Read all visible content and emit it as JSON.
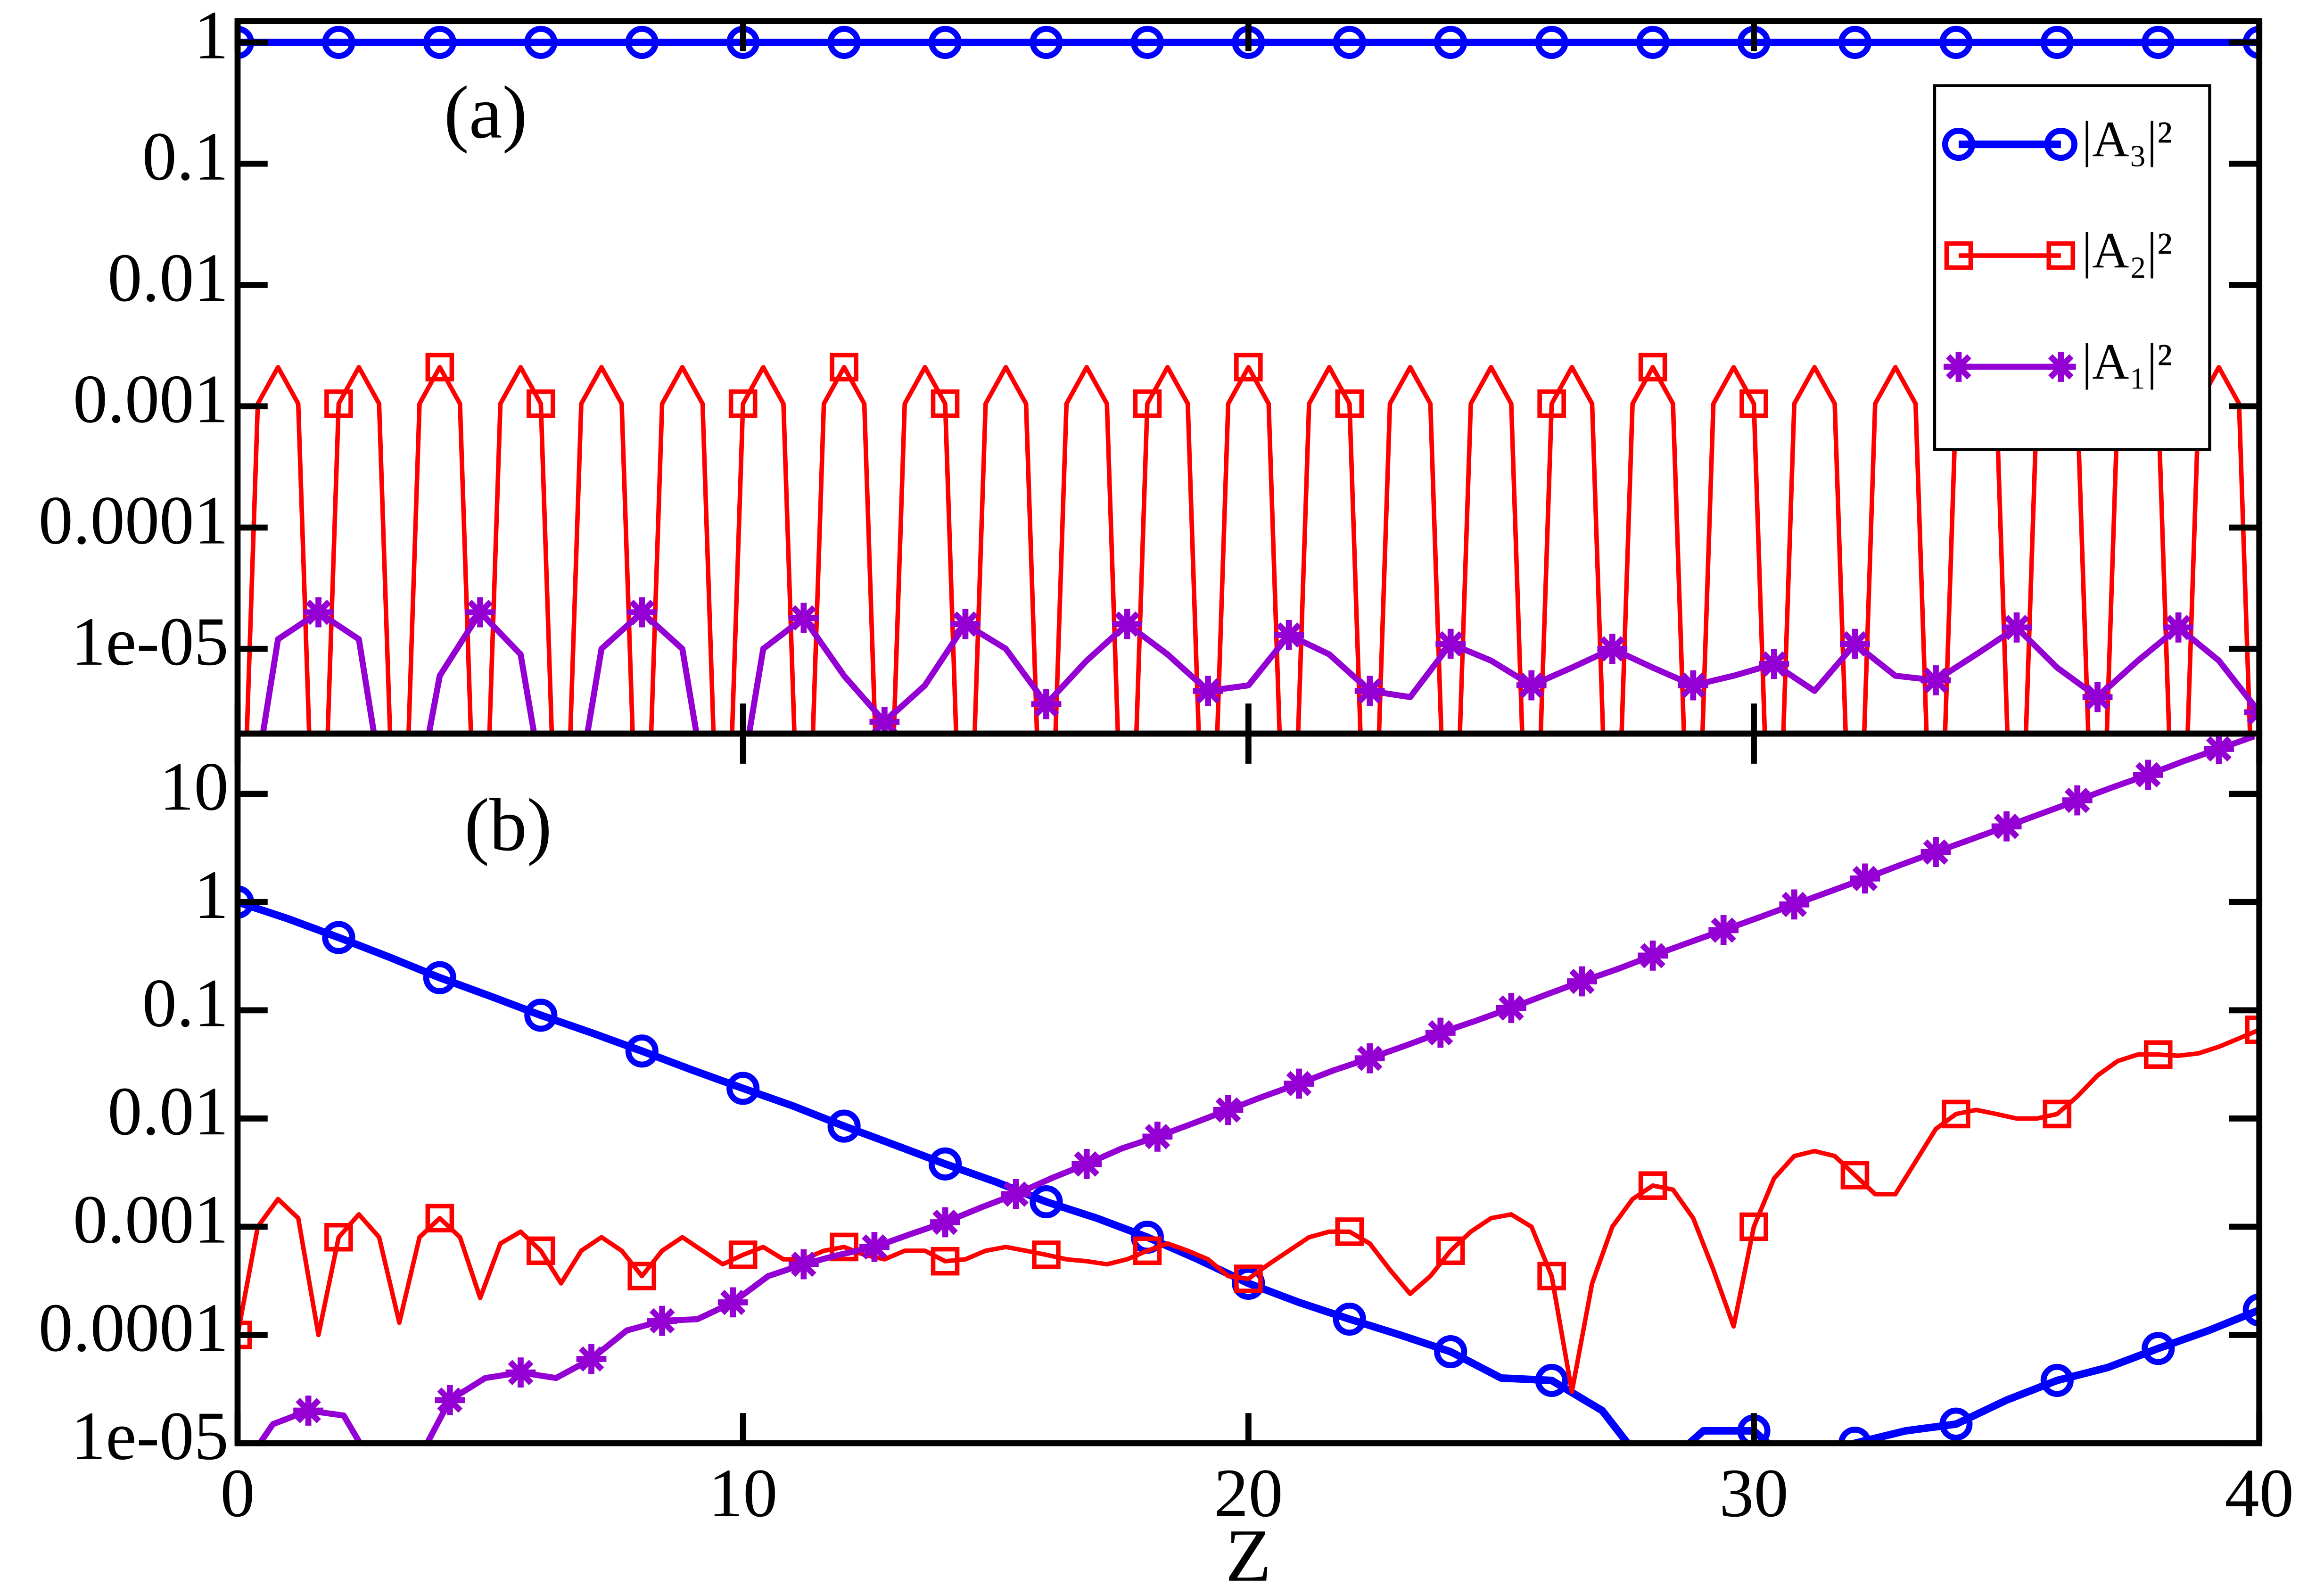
{
  "chart_data": [
    {
      "type": "line",
      "annotation": "(a)",
      "log_y": true,
      "legend": "upper right",
      "xlim": [
        0,
        40
      ],
      "xticks": [
        0,
        10,
        20,
        30,
        40
      ],
      "ylim": [
        2e-06,
        1.5
      ],
      "yticks": [
        {
          "value": 1e-05,
          "label": "1e-05"
        },
        0.0001,
        0.001,
        0.01,
        0.1,
        1
      ],
      "x": [
        0,
        0.4,
        0.8,
        1.2,
        1.6,
        2,
        2.4,
        2.8,
        3.2,
        3.6,
        4,
        4.4,
        4.8,
        5.2,
        5.6,
        6,
        6.4,
        6.8,
        7.2,
        7.6,
        8,
        8.4,
        8.8,
        9.2,
        9.6,
        10,
        10.4,
        10.8,
        11.2,
        11.6,
        12,
        12.4,
        12.8,
        13.2,
        13.6,
        14,
        14.4,
        14.8,
        15.2,
        15.6,
        16,
        16.4,
        16.8,
        17.2,
        17.6,
        18,
        18.4,
        18.8,
        19.2,
        19.6,
        20,
        20.4,
        20.8,
        21.2,
        21.6,
        22,
        22.4,
        22.8,
        23.2,
        23.6,
        24,
        24.4,
        24.8,
        25.2,
        25.6,
        26,
        26.4,
        26.8,
        27.2,
        27.6,
        28,
        28.4,
        28.8,
        29.2,
        29.6,
        30,
        30.4,
        30.8,
        31.2,
        31.6,
        32,
        32.4,
        32.8,
        33.2,
        33.6,
        34,
        34.4,
        34.8,
        35.2,
        35.6,
        36,
        36.4,
        36.8,
        37.2,
        37.6,
        38,
        38.4,
        38.8,
        39.2,
        39.6,
        40
      ],
      "series": [
        {
          "name": "|A₃|²",
          "color": "#0000ff",
          "marker": "circle",
          "x": [
            0,
            2,
            4,
            6,
            8,
            10,
            12,
            14,
            16,
            18,
            20,
            22,
            24,
            26,
            28,
            30,
            32,
            34,
            36,
            38,
            40
          ],
          "values": [
            1,
            1,
            1,
            1,
            1,
            1,
            1,
            1,
            1,
            1,
            1,
            1,
            1,
            1,
            1,
            1,
            1,
            1,
            1,
            1,
            1
          ]
        },
        {
          "name": "|A₂|²",
          "color": "#ff0000",
          "marker": "square",
          "values": [
            1e-08,
            0.00105,
            0.0021,
            0.00105,
            1e-08,
            0.00105,
            0.0021,
            0.00105,
            1e-08,
            0.00105,
            0.0021,
            0.00105,
            1e-08,
            0.00105,
            0.0021,
            0.00105,
            1e-08,
            0.00105,
            0.0021,
            0.00105,
            1e-08,
            0.00105,
            0.0021,
            0.00105,
            1e-08,
            0.00105,
            0.0021,
            0.00105,
            1e-08,
            0.00105,
            0.0021,
            0.00105,
            1e-08,
            0.00105,
            0.0021,
            0.00105,
            1e-08,
            0.00105,
            0.0021,
            0.00105,
            1e-08,
            0.00105,
            0.0021,
            0.00105,
            1e-08,
            0.00105,
            0.0021,
            0.00105,
            1e-08,
            0.00105,
            0.0021,
            0.00105,
            1e-08,
            0.00105,
            0.0021,
            0.00105,
            1e-08,
            0.00105,
            0.0021,
            0.00105,
            1e-08,
            0.00105,
            0.0021,
            0.00105,
            1e-08,
            0.00105,
            0.0021,
            0.00105,
            1e-08,
            0.00105,
            0.0021,
            0.00105,
            1e-08,
            0.00105,
            0.0021,
            0.00105,
            1e-08,
            0.00105,
            0.0021,
            0.00105,
            1e-08,
            0.00105,
            0.0021,
            0.00105,
            1e-08,
            0.00105,
            0.0021,
            0.00105,
            1e-08,
            0.00105,
            0.0021,
            0.00105,
            1e-08,
            0.00105,
            0.0021,
            0.00105,
            1e-08,
            0.00105,
            0.0021,
            0.00105,
            1e-08
          ]
        },
        {
          "name": "|A₁|²",
          "color": "#9400d3",
          "marker": "star",
          "x": [
            0,
            0.8,
            1.6,
            2.4,
            3.2,
            4,
            4.8,
            5.6,
            6.4,
            7.2,
            8,
            8.8,
            9.6,
            10.4,
            11.2,
            12,
            12.8,
            13.6,
            14.4,
            15.2,
            16,
            16.8,
            17.6,
            18.4,
            19.2,
            20,
            20.8,
            21.6,
            22.4,
            23.2,
            24,
            24.8,
            25.6,
            26.4,
            27.2,
            28,
            28.8,
            29.6,
            30.4,
            31.2,
            32,
            32.8,
            33.6,
            34.4,
            35.2,
            36,
            36.8,
            37.6,
            38.4,
            39.2,
            40
          ],
          "values": [
            1e-07,
            1.2e-05,
            2e-05,
            1.2e-05,
            1e-07,
            6e-06,
            2e-05,
            9e-06,
            1e-07,
            1e-05,
            2e-05,
            1e-05,
            1e-07,
            1e-05,
            1.8e-05,
            6e-06,
            2.5e-06,
            5e-06,
            1.6e-05,
            1e-05,
            3.5e-06,
            8e-06,
            1.6e-05,
            9e-06,
            4.5e-06,
            5e-06,
            1.3e-05,
            9e-06,
            4.5e-06,
            4e-06,
            1.1e-05,
            8e-06,
            5e-06,
            7e-06,
            1e-05,
            7e-06,
            5e-06,
            6e-06,
            7.5e-06,
            4.5e-06,
            1.1e-05,
            6e-06,
            5.5e-06,
            9e-06,
            1.5e-05,
            7e-06,
            4e-06,
            8e-06,
            1.5e-05,
            8e-06,
            3e-06
          ]
        }
      ]
    },
    {
      "type": "line",
      "annotation": "(b)",
      "log_y": true,
      "xlabel": "Z",
      "xlim": [
        0,
        40
      ],
      "xticks": [
        0,
        10,
        20,
        30,
        40
      ],
      "ylim": [
        1e-05,
        36
      ],
      "yticks": [
        {
          "value": 1e-05,
          "label": "1e-05"
        },
        0.0001,
        0.001,
        0.01,
        0.1,
        1,
        10
      ],
      "x": [
        0,
        0.4,
        0.8,
        1.2,
        1.6,
        2,
        2.4,
        2.8,
        3.2,
        3.6,
        4,
        4.4,
        4.8,
        5.2,
        5.6,
        6,
        6.4,
        6.8,
        7.2,
        7.6,
        8,
        8.4,
        8.8,
        9.2,
        9.6,
        10,
        10.4,
        10.8,
        11.2,
        11.6,
        12,
        12.4,
        12.8,
        13.2,
        13.6,
        14,
        14.4,
        14.8,
        15.2,
        15.6,
        16,
        16.4,
        16.8,
        17.2,
        17.6,
        18,
        18.4,
        18.8,
        19.2,
        19.6,
        20,
        20.4,
        20.8,
        21.2,
        21.6,
        22,
        22.4,
        22.8,
        23.2,
        23.6,
        24,
        24.4,
        24.8,
        25.2,
        25.6,
        26,
        26.4,
        26.8,
        27.2,
        27.6,
        28,
        28.4,
        28.8,
        29.2,
        29.6,
        30,
        30.4,
        30.8,
        31.2,
        31.6,
        32,
        32.4,
        32.8,
        33.2,
        33.6,
        34,
        34.4,
        34.8,
        35.2,
        35.6,
        36,
        36.4,
        36.8,
        37.2,
        37.6,
        38,
        38.4,
        38.8,
        39.2,
        39.6,
        40
      ],
      "series": [
        {
          "color": "#0000ff",
          "marker": "circle",
          "x": [
            0,
            1,
            2,
            3,
            4,
            5,
            6,
            7,
            8,
            9,
            10,
            11,
            12,
            13,
            14,
            15,
            16,
            17,
            18,
            19,
            20,
            21,
            22,
            23,
            24,
            25,
            26,
            27,
            28,
            29,
            30,
            31,
            32,
            33,
            34,
            35,
            36,
            37,
            38,
            39,
            40
          ],
          "values": [
            1,
            0.7,
            0.47,
            0.31,
            0.2,
            0.135,
            0.09,
            0.062,
            0.042,
            0.028,
            0.019,
            0.013,
            0.0085,
            0.0057,
            0.0038,
            0.0026,
            0.0017,
            0.0012,
            0.0008,
            0.0005,
            0.0003,
            0.0002,
            0.00014,
            0.0001,
            7e-05,
            4e-05,
            3.8e-05,
            2e-05,
            5e-06,
            1.3e-05,
            1.3e-05,
            5e-06,
            1e-05,
            1.3e-05,
            1.5e-05,
            2.5e-05,
            3.8e-05,
            5e-05,
            7.5e-05,
            0.00011,
            0.00017
          ]
        },
        {
          "color": "#ff0000",
          "marker": "square",
          "values": [
            0.0001,
            0.001,
            0.0018,
            0.0012,
            0.0001,
            0.0008,
            0.0013,
            0.0008,
            0.00013,
            0.0008,
            0.0012,
            0.0008,
            0.00022,
            0.0007,
            0.0009,
            0.0006,
            0.0003,
            0.0006,
            0.0008,
            0.0006,
            0.00035,
            0.0006,
            0.0008,
            0.0006,
            0.00045,
            0.00055,
            0.00065,
            0.0005,
            0.0005,
            0.0006,
            0.00065,
            0.00055,
            0.0005,
            0.0006,
            0.0006,
            0.00048,
            0.0005,
            0.0006,
            0.00065,
            0.0006,
            0.00055,
            0.0005,
            0.00048,
            0.00045,
            0.0005,
            0.0006,
            0.0007,
            0.0006,
            0.0005,
            0.00035,
            0.00033,
            0.00045,
            0.0006,
            0.0008,
            0.0009,
            0.0009,
            0.0007,
            0.0004,
            0.00024,
            0.00035,
            0.0006,
            0.0009,
            0.0012,
            0.0013,
            0.001,
            0.00035,
            3e-05,
            0.0003,
            0.001,
            0.0018,
            0.0024,
            0.0022,
            0.0012,
            0.0004,
            0.00012,
            0.001,
            0.0028,
            0.0045,
            0.005,
            0.0045,
            0.003,
            0.002,
            0.002,
            0.004,
            0.008,
            0.011,
            0.012,
            0.011,
            0.01,
            0.01,
            0.011,
            0.016,
            0.025,
            0.034,
            0.039,
            0.039,
            0.038,
            0.04,
            0.046,
            0.055,
            0.066
          ]
        },
        {
          "color": "#9400d3",
          "marker": "star",
          "x": [
            0,
            0.7,
            1.4,
            2.1,
            2.8,
            3.5,
            4.2,
            4.9,
            5.6,
            6.3,
            7,
            7.7,
            8.4,
            9.1,
            9.8,
            10.5,
            11.2,
            11.9,
            12.6,
            13.3,
            14,
            14.7,
            15.4,
            16.1,
            16.8,
            17.5,
            18.2,
            18.9,
            19.6,
            20.3,
            21,
            21.7,
            22.4,
            23.1,
            23.8,
            24.5,
            25.2,
            25.9,
            26.6,
            27.3,
            28,
            28.7,
            29.4,
            30.1,
            30.8,
            31.5,
            32.2,
            32.9,
            33.6,
            34.3,
            35,
            35.7,
            36.4,
            37.1,
            37.8,
            38.5,
            39.2,
            39.9
          ],
          "values": [
            5e-06,
            1.5e-05,
            2e-05,
            1.8e-05,
            5e-06,
            6e-06,
            2.5e-05,
            4e-05,
            4.5e-05,
            4e-05,
            6e-05,
            0.00011,
            0.000135,
            0.00014,
            0.0002,
            0.00035,
            0.00045,
            0.00055,
            0.00065,
            0.00085,
            0.0011,
            0.0015,
            0.002,
            0.0028,
            0.0038,
            0.0053,
            0.0068,
            0.009,
            0.012,
            0.016,
            0.021,
            0.028,
            0.036,
            0.047,
            0.062,
            0.08,
            0.105,
            0.14,
            0.185,
            0.24,
            0.32,
            0.42,
            0.55,
            0.72,
            0.95,
            1.25,
            1.65,
            2.2,
            2.9,
            3.8,
            5,
            6.6,
            8.7,
            11.5,
            15,
            20,
            26,
            34
          ]
        }
      ]
    }
  ]
}
